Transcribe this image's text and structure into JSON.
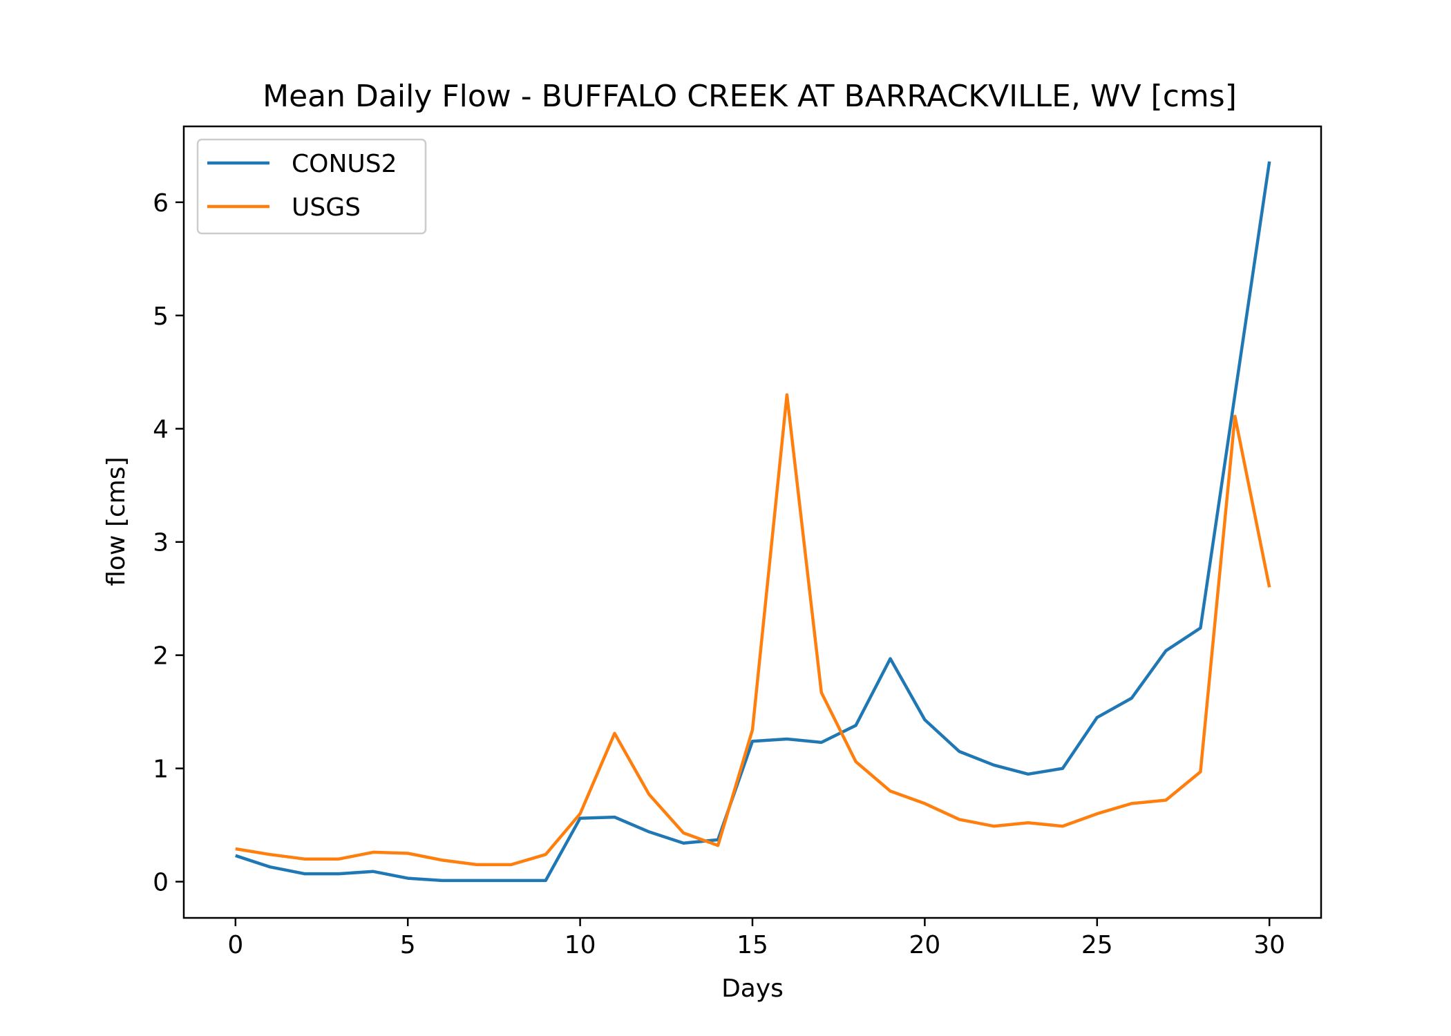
{
  "chart_data": {
    "type": "line",
    "title": "Mean Daily Flow - BUFFALO CREEK AT BARRACKVILLE, WV [cms]",
    "xlabel": "Days",
    "ylabel": "flow [cms]",
    "xlim": [
      -1.5,
      31.5
    ],
    "ylim": [
      -0.32,
      6.67
    ],
    "xticks": [
      0,
      5,
      10,
      15,
      20,
      25,
      30
    ],
    "yticks": [
      0,
      1,
      2,
      3,
      4,
      5,
      6
    ],
    "grid": false,
    "legend_position": "upper-left",
    "x": [
      0,
      1,
      2,
      3,
      4,
      5,
      6,
      7,
      8,
      9,
      10,
      11,
      12,
      13,
      14,
      15,
      16,
      17,
      18,
      19,
      20,
      21,
      22,
      23,
      24,
      25,
      26,
      27,
      28,
      29,
      30
    ],
    "series": [
      {
        "name": "CONUS2",
        "color": "#1f77b4",
        "values": [
          0.23,
          0.13,
          0.07,
          0.07,
          0.09,
          0.03,
          0.01,
          0.01,
          0.01,
          0.01,
          0.56,
          0.57,
          0.44,
          0.34,
          0.37,
          1.24,
          1.26,
          1.23,
          1.38,
          1.97,
          1.43,
          1.15,
          1.03,
          0.95,
          1.0,
          1.45,
          1.62,
          2.04,
          2.24,
          4.3,
          6.36
        ]
      },
      {
        "name": "USGS",
        "color": "#ff7f0e",
        "values": [
          0.29,
          0.24,
          0.2,
          0.2,
          0.26,
          0.25,
          0.19,
          0.15,
          0.15,
          0.24,
          0.6,
          1.31,
          0.77,
          0.43,
          0.32,
          1.34,
          4.3,
          1.67,
          1.06,
          0.8,
          0.69,
          0.55,
          0.49,
          0.52,
          0.49,
          0.6,
          0.69,
          0.72,
          0.97,
          4.11,
          2.6
        ]
      }
    ]
  }
}
